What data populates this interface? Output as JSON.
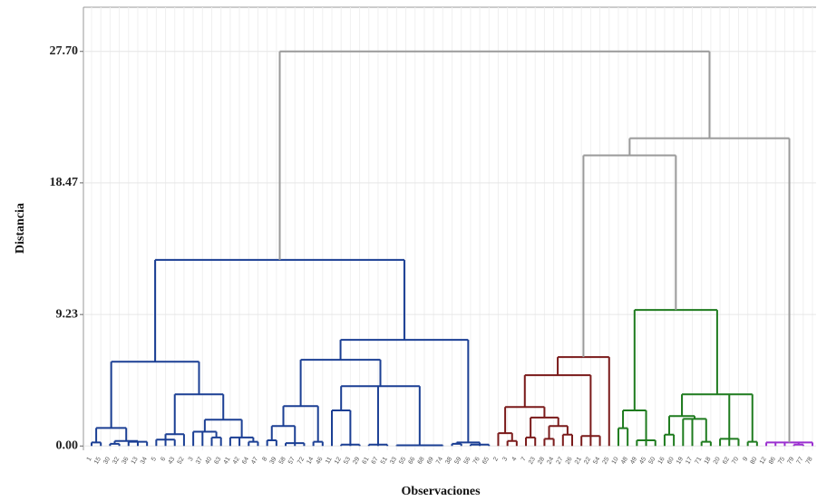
{
  "chart_data": {
    "type": "dendrogram",
    "x_label": "Observaciones",
    "y_label": "Distancia",
    "ylim": [
      -0.3,
      30.8
    ],
    "yticks": [
      {
        "value": 0,
        "label": "0.00"
      },
      {
        "value": 9.23,
        "label": "9.23"
      },
      {
        "value": 18.47,
        "label": "18.47"
      },
      {
        "value": 27.7,
        "label": "27.70"
      }
    ],
    "grid": true,
    "color": "#9a9a9a",
    "tree": {
      "height": 27.7,
      "children": [
        {
          "height": 13.06,
          "color": "#1b3f94",
          "children": [
            {
              "height": 5.92,
              "children": [
                {
                  "height": 1.27,
                  "children": [
                    {
                      "height": 0.25,
                      "children": [
                        "1",
                        "15"
                      ]
                    },
                    {
                      "height": 0.35,
                      "children": [
                        {
                          "height": 0.15,
                          "children": [
                            "30",
                            "32"
                          ]
                        },
                        {
                          "height": 0.3,
                          "children": [
                            "36",
                            "13",
                            "34"
                          ]
                        }
                      ]
                    }
                  ]
                },
                {
                  "height": 3.63,
                  "children": [
                    {
                      "height": 0.83,
                      "children": [
                        {
                          "height": 0.45,
                          "children": [
                            "5",
                            "6",
                            "43"
                          ]
                        },
                        "52"
                      ]
                    },
                    {
                      "height": 1.85,
                      "children": [
                        {
                          "height": 1.0,
                          "children": [
                            "3",
                            "37",
                            {
                              "height": 0.6,
                              "children": [
                                "40",
                                "63"
                              ]
                            }
                          ]
                        },
                        {
                          "height": 0.6,
                          "children": [
                            "41",
                            "42",
                            {
                              "height": 0.3,
                              "children": [
                                "64",
                                "47"
                              ]
                            }
                          ]
                        }
                      ]
                    }
                  ]
                }
              ]
            },
            {
              "height": 7.45,
              "children": [
                {
                  "height": 6.05,
                  "children": [
                    {
                      "height": 2.8,
                      "children": [
                        {
                          "height": 1.4,
                          "children": [
                            {
                              "height": 0.4,
                              "children": [
                                "8",
                                "39"
                              ]
                            },
                            {
                              "height": 0.2,
                              "children": [
                                "58",
                                "57",
                                "72"
                              ]
                            }
                          ]
                        },
                        {
                          "height": 0.3,
                          "children": [
                            "14",
                            "46"
                          ]
                        }
                      ]
                    },
                    {
                      "height": 4.2,
                      "children": [
                        {
                          "height": 2.5,
                          "children": [
                            "11",
                            {
                              "height": 0.1,
                              "children": [
                                "12",
                                "53",
                                "29"
                              ]
                            }
                          ]
                        },
                        {
                          "height": 0.1,
                          "children": [
                            "61",
                            "67",
                            "51"
                          ]
                        },
                        {
                          "height": 0.05,
                          "children": [
                            "33",
                            "55",
                            "66",
                            "68",
                            "69",
                            "74"
                          ]
                        }
                      ]
                    }
                  ]
                },
                {
                  "height": 0.25,
                  "children": [
                    {
                      "height": 0.15,
                      "children": [
                        "38",
                        "59"
                      ]
                    },
                    {
                      "height": 0.1,
                      "children": [
                        "56",
                        "76",
                        "65"
                      ]
                    }
                  ]
                }
              ]
            }
          ]
        },
        {
          "height": 21.6,
          "children": [
            {
              "height": 20.4,
              "children": [
                {
                  "height": 6.24,
                  "color": "#7a1a1a",
                  "children": [
                    {
                      "height": 4.97,
                      "children": [
                        {
                          "height": 2.74,
                          "children": [
                            {
                              "height": 0.9,
                              "children": [
                                "2",
                                {
                                  "height": 0.35,
                                  "children": [
                                    "3",
                                    "4"
                                  ]
                                }
                              ]
                            },
                            {
                              "height": 2.0,
                              "children": [
                                {
                                  "height": 0.6,
                                  "children": [
                                    "7",
                                    "23"
                                  ]
                                },
                                {
                                  "height": 1.4,
                                  "children": [
                                    {
                                      "height": 0.5,
                                      "children": [
                                        "28",
                                        "24"
                                      ]
                                    },
                                    {
                                      "height": 0.8,
                                      "children": [
                                        "27",
                                        "26"
                                      ]
                                    }
                                  ]
                                }
                              ]
                            }
                          ]
                        },
                        {
                          "height": 0.7,
                          "children": [
                            "21",
                            "22",
                            "54"
                          ]
                        }
                      ]
                    },
                    "25"
                  ]
                },
                {
                  "height": 9.55,
                  "color": "#1e7b1e",
                  "children": [
                    {
                      "height": 2.5,
                      "children": [
                        {
                          "height": 1.25,
                          "children": [
                            "10",
                            "48"
                          ]
                        },
                        {
                          "height": 0.4,
                          "children": [
                            "49",
                            "45",
                            "50"
                          ]
                        }
                      ]
                    },
                    {
                      "height": 3.63,
                      "children": [
                        {
                          "height": 2.1,
                          "children": [
                            {
                              "height": 0.8,
                              "children": [
                                "16",
                                "60"
                              ]
                            },
                            {
                              "height": 1.9,
                              "children": [
                                "19",
                                "17",
                                {
                                  "height": 0.3,
                                  "children": [
                                    "71",
                                    "18"
                                  ]
                                }
                              ]
                            }
                          ]
                        },
                        {
                          "height": 0.5,
                          "children": [
                            "20",
                            "62",
                            "70"
                          ]
                        },
                        {
                          "height": 0.3,
                          "children": [
                            "9",
                            "80"
                          ]
                        }
                      ]
                    }
                  ]
                }
              ]
            },
            {
              "height": 0.25,
              "color": "#9b30d0",
              "children": [
                "12",
                "86",
                "75",
                {
                  "height": 0.1,
                  "children": [
                    "79",
                    "77"
                  ]
                },
                "78"
              ]
            }
          ]
        }
      ]
    }
  }
}
